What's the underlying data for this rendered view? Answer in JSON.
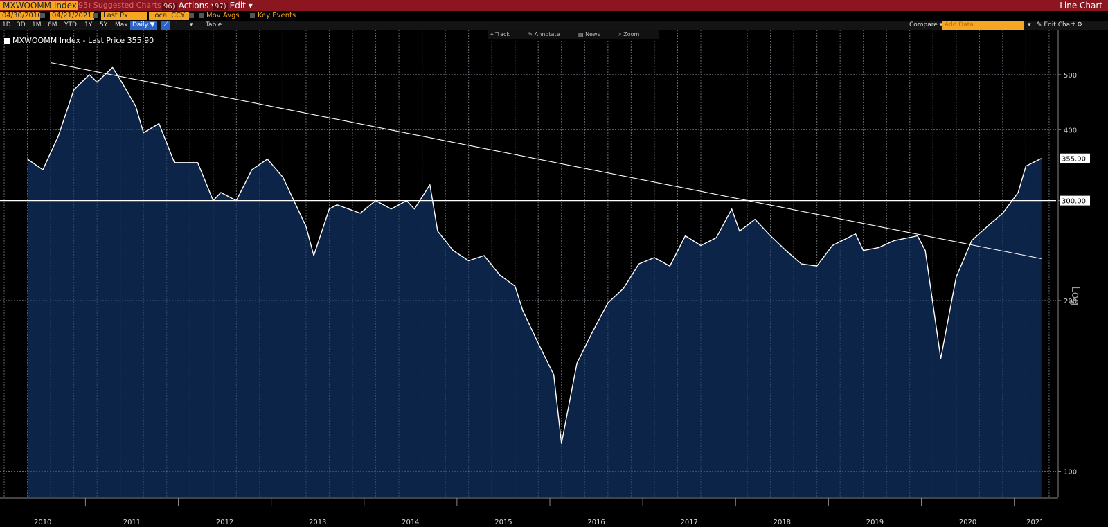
{
  "toolbar": {
    "ticker": "MXWOOMM Index",
    "suggested": "Suggested Charts",
    "suggested_num": "95",
    "actions_num": "96)",
    "actions": "Actions ▾",
    "edit_num": "97)",
    "edit": "Edit ▾",
    "chart_type": "Line Chart"
  },
  "settings": {
    "start_date": "04/30/2010",
    "end_date": "04/21/2021",
    "field": "Last Px",
    "currency": "Local CCY",
    "mov_avgs": "Mov Avgs",
    "key_events": "Key Events"
  },
  "periods": [
    "1D",
    "3D",
    "1M",
    "6M",
    "YTD",
    "1Y",
    "5Y",
    "Max"
  ],
  "frequency": "Daily ▼",
  "table_label": "Table",
  "compare_label": "Compare",
  "add_data_placeholder": "Add Data",
  "edit_chart_label": "Edit Chart",
  "tools": [
    "Track",
    "Annotate",
    "News",
    "Zoom"
  ],
  "legend_label": "MXWOOMM Index - Last Price 355.90",
  "colors": {
    "line": "#ffffff",
    "area": "#0c2447",
    "toolbar": "#8b1620",
    "accent": "#f5a623"
  },
  "chart_data": {
    "type": "area",
    "scale": "log",
    "ylim": [
      90,
      600
    ],
    "y_ticks": [
      100,
      200,
      300,
      400,
      500
    ],
    "y_axis_label": "Log",
    "x_ticks": [
      "2010",
      "2011",
      "2012",
      "2013",
      "2014",
      "2015",
      "2016",
      "2017",
      "2018",
      "2019",
      "2020",
      "2021"
    ],
    "last_price_tag": "355.90",
    "reference_tag": "300.00",
    "horizontal_line": 300,
    "trendline": {
      "from": [
        "2010-08",
        525
      ],
      "to": [
        "2021-04",
        237
      ]
    },
    "grid": true,
    "series": [
      {
        "x": [
          "2010-05",
          "2010-07",
          "2010-09",
          "2010-11",
          "2011-01",
          "2011-02",
          "2011-04",
          "2011-05",
          "2011-07",
          "2011-08",
          "2011-10",
          "2011-12",
          "2012-03",
          "2012-05",
          "2012-06",
          "2012-08",
          "2012-10",
          "2012-12",
          "2013-02",
          "2013-05",
          "2013-06",
          "2013-08",
          "2013-09",
          "2013-12",
          "2014-02",
          "2014-04",
          "2014-06",
          "2014-07",
          "2014-09",
          "2014-10",
          "2014-12",
          "2015-02",
          "2015-04",
          "2015-06",
          "2015-08",
          "2015-09",
          "2015-11",
          "2016-01",
          "2016-02",
          "2016-04",
          "2016-06",
          "2016-08",
          "2016-10",
          "2016-12",
          "2017-02",
          "2017-04",
          "2017-06",
          "2017-08",
          "2017-10",
          "2017-12",
          "2018-01",
          "2018-03",
          "2018-05",
          "2018-07",
          "2018-09",
          "2018-11",
          "2019-01",
          "2019-04",
          "2019-05",
          "2019-07",
          "2019-09",
          "2019-12",
          "2020-01",
          "2020-03",
          "2020-05",
          "2020-07",
          "2020-09",
          "2020-11",
          "2021-01",
          "2021-02",
          "2021-04"
        ],
        "values": [
          355,
          340,
          390,
          470,
          500,
          485,
          515,
          490,
          440,
          395,
          410,
          350,
          350,
          300,
          310,
          300,
          340,
          355,
          330,
          270,
          240,
          290,
          295,
          285,
          300,
          290,
          300,
          290,
          320,
          265,
          245,
          235,
          240,
          222,
          212,
          192,
          168,
          148,
          112,
          155,
          176,
          198,
          210,
          232,
          238,
          230,
          260,
          250,
          258,
          290,
          265,
          278,
          260,
          245,
          232,
          230,
          250,
          262,
          245,
          248,
          255,
          260,
          245,
          158,
          220,
          255,
          270,
          285,
          310,
          345,
          356
        ]
      }
    ]
  }
}
